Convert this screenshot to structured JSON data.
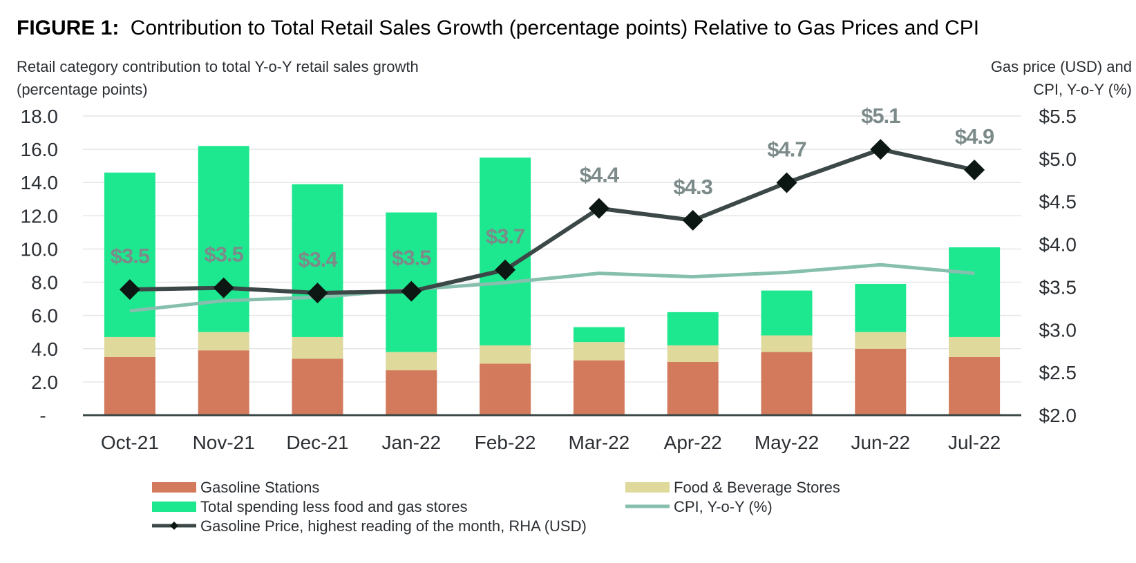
{
  "chart_data": {
    "type": "bar",
    "title_prefix": "FIGURE 1:",
    "title": "Contribution to Total Retail Sales Growth (percentage points) Relative to Gas Prices and CPI",
    "ylabel_line1": "Retail category contribution to total Y-o-Y retail sales growth",
    "ylabel_line2": "(percentage points)",
    "y2label_line1": "Gas price (USD) and",
    "y2label_line2": "CPI, Y-o-Y (%)",
    "ylim": [
      0,
      18
    ],
    "y2lim": [
      2.0,
      5.5
    ],
    "yticks": [
      {
        "value": 0,
        "label": "-"
      },
      {
        "value": 2,
        "label": "2.0"
      },
      {
        "value": 4,
        "label": "4.0"
      },
      {
        "value": 6,
        "label": "6.0"
      },
      {
        "value": 8,
        "label": "8.0"
      },
      {
        "value": 10,
        "label": "10.0"
      },
      {
        "value": 12,
        "label": "12.0"
      },
      {
        "value": 14,
        "label": "14.0"
      },
      {
        "value": 16,
        "label": "16.0"
      },
      {
        "value": 18,
        "label": "18.0"
      }
    ],
    "y2ticks": [
      {
        "value": 2.0,
        "label": "$2.0"
      },
      {
        "value": 2.5,
        "label": "$2.5"
      },
      {
        "value": 3.0,
        "label": "$3.0"
      },
      {
        "value": 3.5,
        "label": "$3.5"
      },
      {
        "value": 4.0,
        "label": "$4.0"
      },
      {
        "value": 4.5,
        "label": "$4.5"
      },
      {
        "value": 5.0,
        "label": "$5.0"
      },
      {
        "value": 5.5,
        "label": "$5.5"
      }
    ],
    "grid": true,
    "categories": [
      "Oct-21",
      "Nov-21",
      "Dec-21",
      "Jan-22",
      "Feb-22",
      "Mar-22",
      "Apr-22",
      "May-22",
      "Jun-22",
      "Jul-22"
    ],
    "series": [
      {
        "name": "Gasoline Stations",
        "kind": "stacked-bar",
        "axis": "left",
        "color": "#d27a5b",
        "values": [
          3.5,
          3.9,
          3.4,
          2.7,
          3.1,
          3.3,
          3.2,
          3.8,
          4.0,
          3.5
        ]
      },
      {
        "name": "Food & Beverage Stores",
        "kind": "stacked-bar",
        "axis": "left",
        "color": "#dfd99c",
        "values": [
          1.2,
          1.1,
          1.3,
          1.1,
          1.1,
          1.1,
          1.0,
          1.0,
          1.0,
          1.2
        ]
      },
      {
        "name": "Total spending less food and gas stores",
        "kind": "stacked-bar",
        "axis": "left",
        "color": "#1ee88f",
        "values": [
          9.9,
          11.2,
          9.2,
          8.4,
          11.3,
          0.9,
          2.0,
          2.7,
          2.9,
          5.4
        ]
      },
      {
        "name": "CPI, Y-o-Y (%)",
        "kind": "line",
        "axis": "right",
        "color": "#86bfae",
        "values": [
          3.22,
          3.34,
          3.38,
          3.47,
          3.55,
          3.66,
          3.62,
          3.67,
          3.76,
          3.66
        ]
      },
      {
        "name": "Gasoline Price, highest reading of the month, RHA (USD)",
        "kind": "line-marker",
        "axis": "right",
        "color": "#3c4847",
        "values": [
          3.47,
          3.49,
          3.43,
          3.45,
          3.7,
          4.42,
          4.28,
          4.72,
          5.11,
          4.87
        ],
        "labels": [
          "$3.5",
          "$3.5",
          "$3.4",
          "$3.5",
          "$3.7",
          "$4.4",
          "$4.3",
          "$4.7",
          "$5.1",
          "$4.9"
        ]
      }
    ],
    "legend": [
      {
        "label": "Gasoline Stations",
        "kind": "swatch",
        "color": "#d27a5b"
      },
      {
        "label": "Food & Beverage Stores",
        "kind": "swatch",
        "color": "#dfd99c"
      },
      {
        "label": "Total spending less food and gas stores",
        "kind": "swatch",
        "color": "#1ee88f"
      },
      {
        "label": "CPI, Y-o-Y (%)",
        "kind": "line",
        "color": "#86bfae"
      },
      {
        "label": "Gasoline Price, highest reading of the month, RHA (USD)",
        "kind": "line-marker",
        "color": "#3c4847"
      }
    ],
    "legend_placement": "bottom"
  }
}
